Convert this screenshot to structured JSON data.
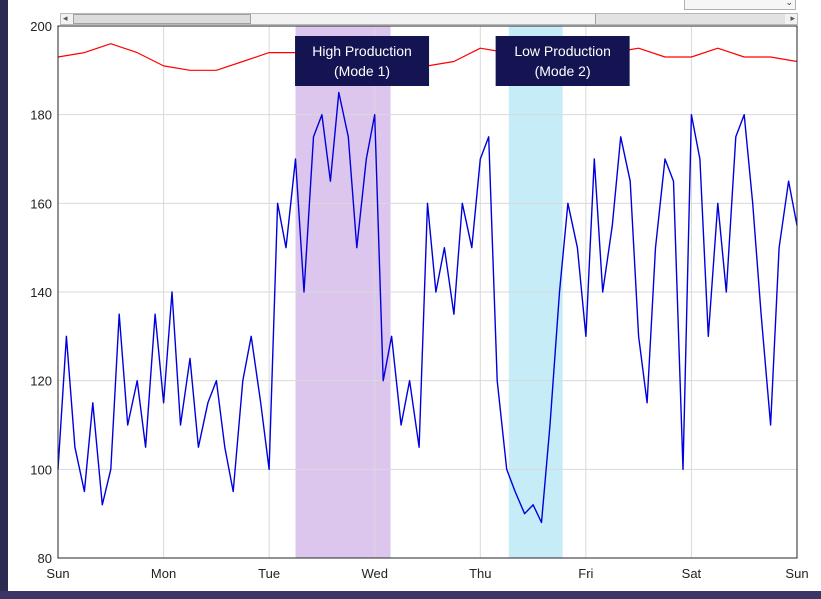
{
  "chart_data": {
    "type": "line",
    "title": "",
    "xlabel": "",
    "ylabel": "",
    "x_ticks": [
      "Sun",
      "Mon",
      "Tue",
      "Wed",
      "Thu",
      "Fri",
      "Sat",
      "Sun"
    ],
    "xlim": [
      0,
      7
    ],
    "ylim": [
      80,
      200
    ],
    "y_ticks": [
      80,
      100,
      120,
      140,
      160,
      180,
      200
    ],
    "grid": true,
    "series": [
      {
        "color": "#ff0000",
        "x": [
          0,
          0.25,
          0.5,
          0.75,
          1,
          1.25,
          1.5,
          1.75,
          2,
          2.25,
          2.5,
          2.75,
          3,
          3.25,
          3.5,
          3.75,
          4,
          4.25,
          4.5,
          4.75,
          5,
          5.25,
          5.5,
          5.75,
          6,
          6.25,
          6.5,
          6.75,
          7
        ],
        "values": [
          193,
          194,
          196,
          194,
          191,
          190,
          190,
          192,
          194,
          194,
          196,
          194,
          192,
          193,
          191,
          192,
          195,
          194,
          193,
          194,
          193,
          194,
          195,
          193,
          193,
          195,
          193,
          193,
          192
        ]
      },
      {
        "color": "#0000dd",
        "x": [
          0,
          0.08,
          0.16,
          0.25,
          0.33,
          0.42,
          0.5,
          0.58,
          0.66,
          0.75,
          0.83,
          0.92,
          1,
          1.08,
          1.16,
          1.25,
          1.33,
          1.42,
          1.5,
          1.58,
          1.66,
          1.75,
          1.83,
          1.92,
          2,
          2.08,
          2.16,
          2.25,
          2.33,
          2.42,
          2.5,
          2.58,
          2.66,
          2.75,
          2.83,
          2.92,
          3,
          3.08,
          3.16,
          3.25,
          3.33,
          3.42,
          3.5,
          3.58,
          3.66,
          3.75,
          3.83,
          3.92,
          4,
          4.08,
          4.16,
          4.25,
          4.33,
          4.42,
          4.5,
          4.58,
          4.66,
          4.75,
          4.83,
          4.92,
          5,
          5.08,
          5.16,
          5.25,
          5.33,
          5.42,
          5.5,
          5.58,
          5.66,
          5.75,
          5.83,
          5.92,
          6,
          6.08,
          6.16,
          6.25,
          6.33,
          6.42,
          6.5,
          6.58,
          6.66,
          6.75,
          6.83,
          6.92,
          7
        ],
        "values": [
          100,
          130,
          105,
          95,
          115,
          92,
          100,
          135,
          110,
          120,
          105,
          135,
          115,
          140,
          110,
          125,
          105,
          115,
          120,
          105,
          95,
          120,
          130,
          115,
          100,
          160,
          150,
          170,
          140,
          175,
          180,
          165,
          185,
          175,
          150,
          170,
          180,
          120,
          130,
          110,
          120,
          105,
          160,
          140,
          150,
          135,
          160,
          150,
          170,
          175,
          120,
          100,
          95,
          90,
          92,
          88,
          110,
          140,
          160,
          150,
          130,
          170,
          140,
          155,
          175,
          165,
          130,
          115,
          150,
          170,
          165,
          100,
          180,
          170,
          130,
          160,
          140,
          175,
          180,
          160,
          135,
          110,
          150,
          165,
          155
        ]
      }
    ],
    "bands": [
      {
        "x_start": 2.25,
        "x_end": 3.15,
        "color": "#dcc6ee",
        "label_line1": "High Production",
        "label_line2": "(Mode 1)",
        "label_x": 2.88
      },
      {
        "x_start": 4.27,
        "x_end": 4.78,
        "color": "#c6ecf8",
        "label_line1": "Low Production",
        "label_line2": "(Mode 2)",
        "label_x": 4.78
      }
    ]
  }
}
